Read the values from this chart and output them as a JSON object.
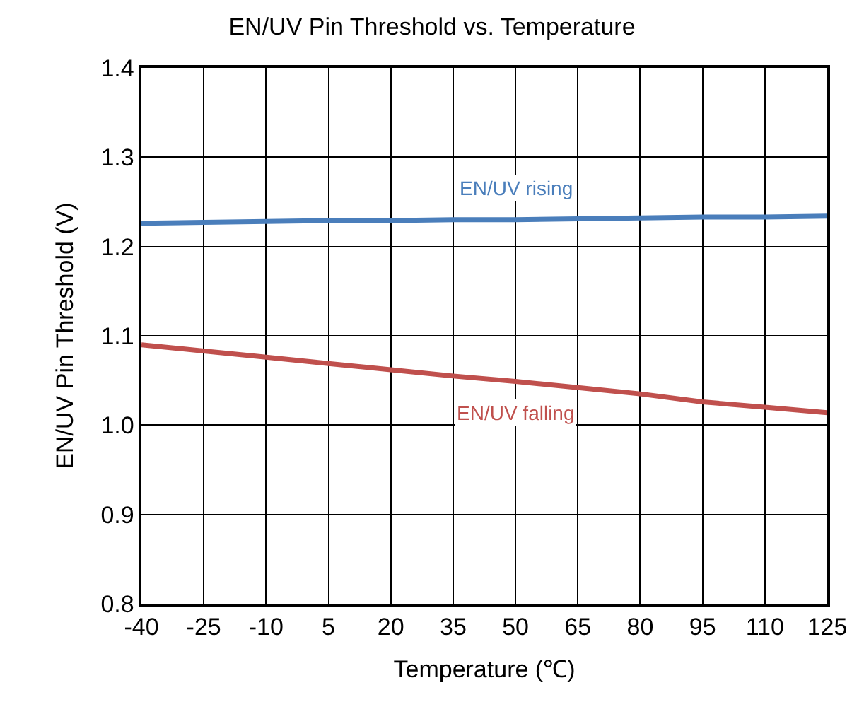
{
  "chart_data": {
    "type": "line",
    "title": "EN/UV Pin Threshold vs. Temperature",
    "xlabel": "Temperature (℃)",
    "ylabel": "EN/UV Pin Threshold (V)",
    "x": [
      -40,
      -25,
      -10,
      5,
      20,
      35,
      50,
      65,
      80,
      95,
      110,
      125
    ],
    "series": [
      {
        "name": "EN/UV rising",
        "color": "#4a7ebb",
        "values": [
          1.226,
          1.227,
          1.228,
          1.229,
          1.229,
          1.23,
          1.23,
          1.231,
          1.232,
          1.233,
          1.233,
          1.234
        ]
      },
      {
        "name": "EN/UV falling",
        "color": "#c0504d",
        "values": [
          1.09,
          1.083,
          1.076,
          1.069,
          1.062,
          1.055,
          1.049,
          1.042,
          1.035,
          1.026,
          1.02,
          1.014
        ]
      }
    ],
    "xlim": [
      -40,
      125
    ],
    "xticks": [
      -40,
      -25,
      -10,
      5,
      20,
      35,
      50,
      65,
      80,
      95,
      110,
      125
    ],
    "ylim": [
      0.8,
      1.4
    ],
    "yticks": [
      {
        "value": 0.8,
        "label": "0.8"
      },
      {
        "value": 0.9,
        "label": "0.9"
      },
      {
        "value": 1.0,
        "label": "1.0"
      },
      {
        "value": 1.1,
        "label": "1.1"
      },
      {
        "value": 1.2,
        "label": "1.2"
      },
      {
        "value": 1.3,
        "label": "1.3"
      },
      {
        "value": 1.4,
        "label": "1.4"
      }
    ],
    "grid": true,
    "legend": false,
    "marker": "none",
    "line_style": "solid"
  }
}
